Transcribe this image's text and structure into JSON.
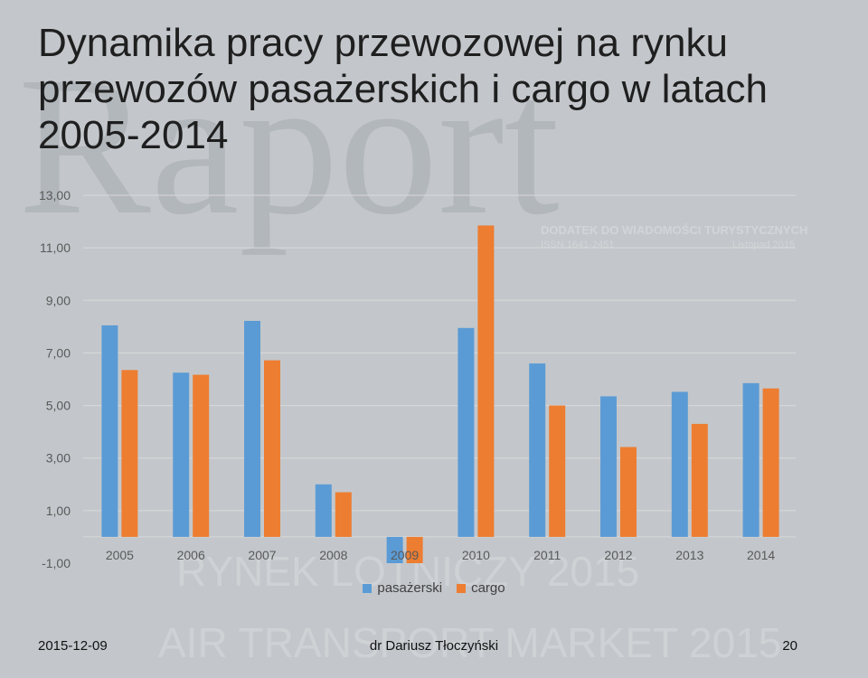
{
  "slide": {
    "title": "Dynamika pracy przewozowej na rynku przewozów pasażerskich i cargo w latach 2005-2014",
    "date": "2015-12-09",
    "author": "dr Dariusz Tłoczyński",
    "page": "20"
  },
  "watermark": {
    "logo": "Raport",
    "subtitle": "DODATEK DO WIADOMOŚCI TURYSTYCZNYCH",
    "issn": "ISSN 1641-2451",
    "month": "Listopad 2015",
    "line1": "RYNEK LOTNICZY 2015",
    "line2": "AIR TRANSPORT MARKET 2015"
  },
  "chart_data": {
    "type": "bar",
    "title": "",
    "xlabel": "",
    "ylabel": "",
    "categories": [
      "2005",
      "2006",
      "2007",
      "2008",
      "2009",
      "2010",
      "2011",
      "2012",
      "2013",
      "2014"
    ],
    "series": [
      {
        "name": "pasażerski",
        "color": "#5b9bd5",
        "values": [
          8.05,
          6.25,
          8.22,
          2.0,
          -1.0,
          7.95,
          6.6,
          5.35,
          5.52,
          5.85
        ]
      },
      {
        "name": "cargo",
        "color": "#ed7d31",
        "values": [
          6.35,
          6.17,
          6.72,
          1.7,
          -1.0,
          11.85,
          5.0,
          3.42,
          4.3,
          5.65
        ]
      }
    ],
    "ylim": [
      -1,
      13
    ],
    "yticks": [
      "13,00",
      "11,00",
      "9,00",
      "7,00",
      "5,00",
      "3,00",
      "1,00",
      "-1,00"
    ],
    "ytick_values": [
      13,
      11,
      9,
      7,
      5,
      3,
      1,
      -1
    ],
    "grid": true,
    "legend": "bottom"
  }
}
